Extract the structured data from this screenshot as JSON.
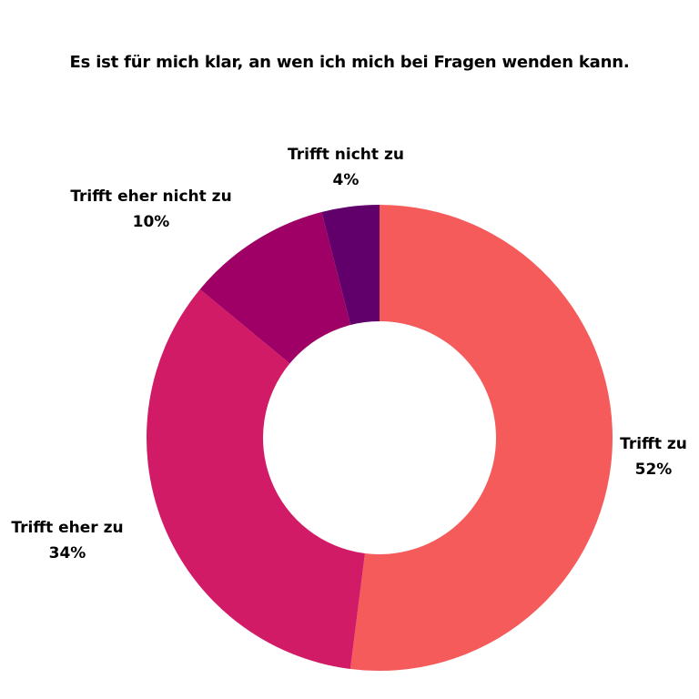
{
  "chart_data": {
    "type": "pie",
    "title": "Es ist für mich klar, an wen ich mich bei Fragen wenden kann.",
    "slices": [
      {
        "label": "Trifft zu",
        "value": 52,
        "value_label": "52%",
        "color": "#f55b5b"
      },
      {
        "label": "Trifft eher zu",
        "value": 34,
        "value_label": "34%",
        "color": "#d11b66"
      },
      {
        "label": "Trifft eher nicht zu",
        "value": 10,
        "value_label": "10%",
        "color": "#9e0066"
      },
      {
        "label": "Trifft nicht zu",
        "value": 4,
        "value_label": "4%",
        "color": "#62006b"
      }
    ],
    "donut": true,
    "legend": "none"
  }
}
